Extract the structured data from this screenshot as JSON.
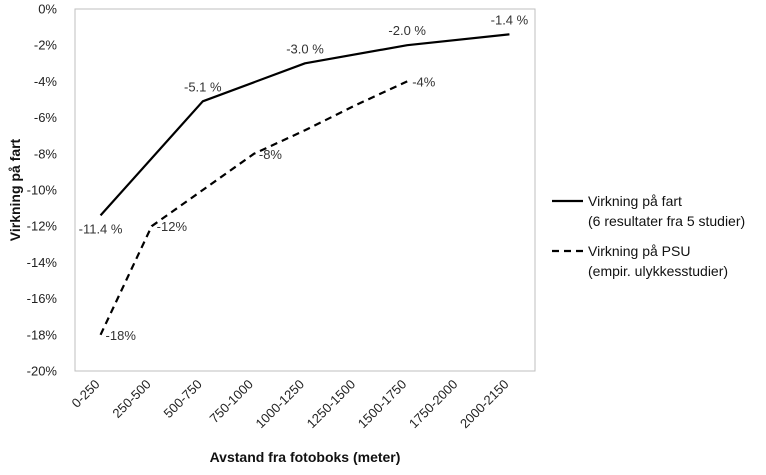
{
  "chart_data": {
    "type": "line",
    "categories": [
      "0-250",
      "250-500",
      "500-750",
      "750-1000",
      "1000-1250",
      "1250-1500",
      "1500-1750",
      "1750-2000",
      "2000-2150"
    ],
    "xlabel": "Avstand fra fotoboks (meter)",
    "ylabel": "Virkning på fart",
    "ylim": [
      -20,
      0
    ],
    "ytick_step": 2,
    "ytick_format": "{v}%",
    "grid": false,
    "legend_position": "right",
    "series": [
      {
        "name_line1": "Virkning på fart",
        "name_line2": "(6 resultater fra 5 studier)",
        "style": "solid",
        "color": "#000000",
        "points": [
          {
            "x": 0,
            "y": -11.4,
            "label": "-11.4 %"
          },
          {
            "x": 2,
            "y": -5.1,
            "label": "-5.1 %"
          },
          {
            "x": 4,
            "y": -3.0,
            "label": "-3.0 %"
          },
          {
            "x": 6,
            "y": -2.0,
            "label": "-2.0 %"
          },
          {
            "x": 8,
            "y": -1.4,
            "label": "-1.4 %"
          }
        ]
      },
      {
        "name_line1": "Virkning på PSU",
        "name_line2": "(empir. ulykkesstudier)",
        "style": "dashed",
        "color": "#000000",
        "points": [
          {
            "x": 0,
            "y": -18,
            "label": "-18%"
          },
          {
            "x": 1,
            "y": -12,
            "label": "-12%"
          },
          {
            "x": 2,
            "y": -10,
            "label": ""
          },
          {
            "x": 3,
            "y": -8,
            "label": "-8%"
          },
          {
            "x": 4,
            "y": -6.7,
            "label": ""
          },
          {
            "x": 5,
            "y": -5.3,
            "label": ""
          },
          {
            "x": 6,
            "y": -4,
            "label": "-4%"
          }
        ]
      }
    ]
  }
}
